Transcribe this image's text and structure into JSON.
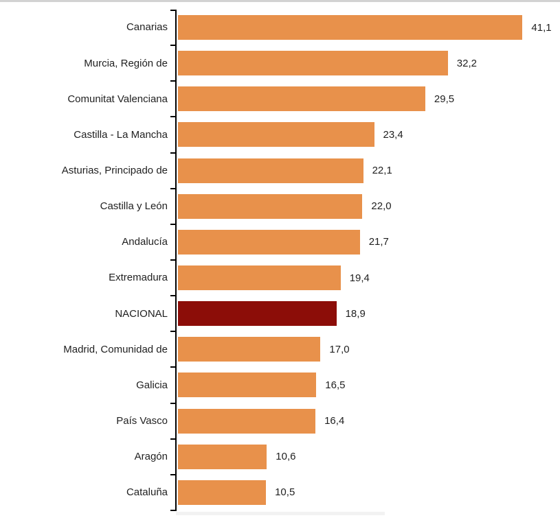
{
  "chart_data": {
    "type": "bar",
    "orientation": "horizontal",
    "categories": [
      "Canarias",
      "Murcia, Región de",
      "Comunitat Valenciana",
      "Castilla - La Mancha",
      "Asturias, Principado de",
      "Castilla y León",
      "Andalucía",
      "Extremadura",
      "NACIONAL",
      "Madrid, Comunidad de",
      "Galicia",
      "País Vasco",
      "Aragón",
      "Cataluña"
    ],
    "values": [
      41.1,
      32.2,
      29.5,
      23.4,
      22.1,
      22.0,
      21.7,
      19.4,
      18.9,
      17.0,
      16.5,
      16.4,
      10.6,
      10.5
    ],
    "value_labels": [
      "41,1",
      "32,2",
      "29,5",
      "23,4",
      "22,1",
      "22,0",
      "21,7",
      "19,4",
      "18,9",
      "17,0",
      "16,5",
      "16,4",
      "10,6",
      "10,5"
    ],
    "decimal_separator": ",",
    "highlight_category": "NACIONAL",
    "value_label_position": "outside-right",
    "xlim": [
      0,
      45
    ],
    "grid": false,
    "legend": false,
    "colors": {
      "bar": "#E8914B",
      "highlight": "#8C0D08",
      "axis": "#000000",
      "text": "#1F1F1F",
      "top_border": "#D2D2D2",
      "bottom_artifact": "#F2F2F2"
    }
  }
}
